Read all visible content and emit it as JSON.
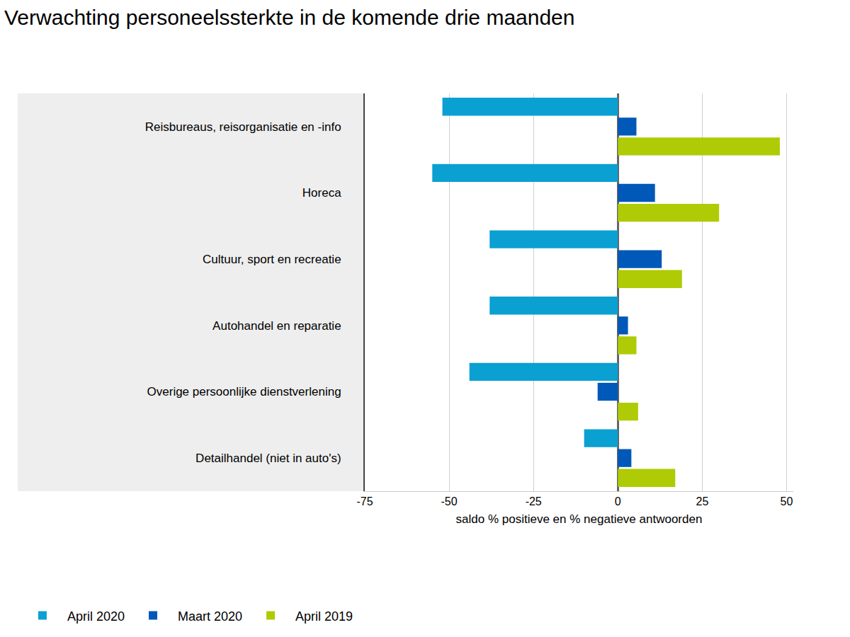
{
  "chart_data": {
    "type": "bar",
    "orientation": "horizontal",
    "title": "Verwachting personeelssterkte in de komende drie maanden",
    "x_label": "saldo % positieve en % negatieve antwoorden",
    "categories": [
      "Reisbureaus, reisorganisatie en -info",
      "Horeca",
      "Cultuur, sport en recreatie",
      "Autohandel en reparatie",
      "Overige persoonlijke dienstverlening",
      "Detailhandel (niet in auto's)"
    ],
    "series": [
      {
        "name": "April 2020",
        "color": "#0aa0d2",
        "values": [
          -52,
          -55,
          -38,
          -38,
          -44,
          -10
        ]
      },
      {
        "name": "Maart 2020",
        "color": "#0058b8",
        "values": [
          5.5,
          11,
          13,
          3,
          -6,
          4
        ]
      },
      {
        "name": "April 2019",
        "color": "#afcb05",
        "values": [
          48,
          30,
          19,
          5.5,
          6,
          17
        ]
      }
    ],
    "xlim": [
      -75,
      52
    ],
    "xticks": [
      -75,
      -50,
      -25,
      0,
      25,
      50
    ],
    "grid": true,
    "legend": "bottom"
  }
}
